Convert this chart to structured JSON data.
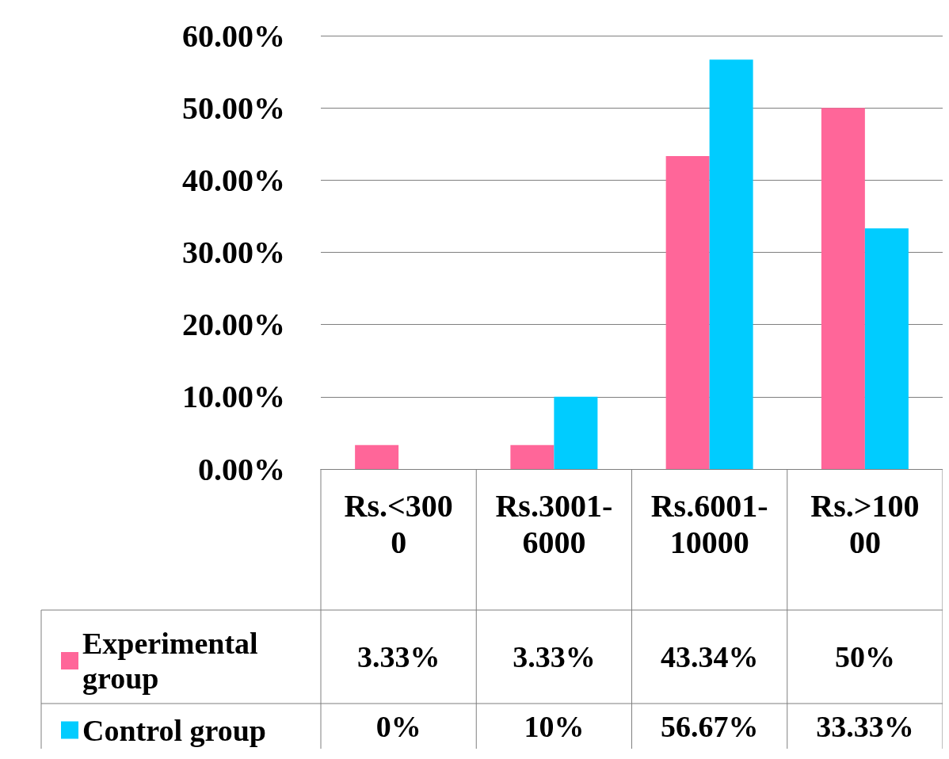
{
  "chart_data": {
    "type": "bar",
    "categories": [
      "Rs.<3000",
      "Rs.3001-6000",
      "Rs.6001-10000",
      "Rs.>10000"
    ],
    "series": [
      {
        "name": "Experimental group",
        "color": "#ff6699",
        "values": [
          3.33,
          3.33,
          43.34,
          50
        ],
        "value_labels": [
          "3.33%",
          "3.33%",
          "43.34%",
          "50%"
        ]
      },
      {
        "name": "Control group",
        "color": "#00ccff",
        "values": [
          0,
          10,
          56.67,
          33.33
        ],
        "value_labels": [
          "0%",
          "10%",
          "56.67%",
          "33.33%"
        ]
      }
    ],
    "ylim": [
      0,
      60
    ],
    "yticks": [
      {
        "value": 0,
        "label": "0.00%"
      },
      {
        "value": 10,
        "label": "10.00%"
      },
      {
        "value": 20,
        "label": "20.00%"
      },
      {
        "value": 30,
        "label": "30.00%"
      },
      {
        "value": 40,
        "label": "40.00%"
      },
      {
        "value": 50,
        "label": "50.00%"
      },
      {
        "value": 60,
        "label": "60.00%"
      }
    ],
    "grid": "y",
    "legend": "bottom"
  }
}
